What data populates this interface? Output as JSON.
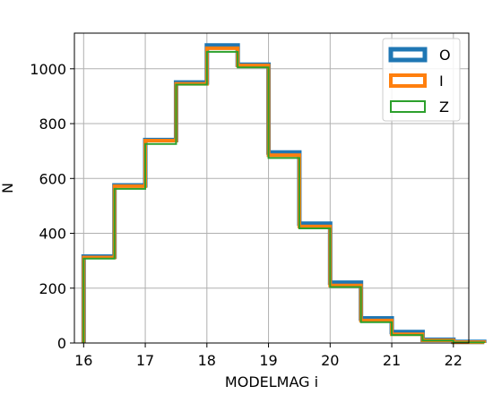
{
  "chart_data": {
    "type": "histogram-step",
    "title": "",
    "xlabel": "MODELMAG i",
    "ylabel": "N",
    "xlim": [
      15.85,
      22.25
    ],
    "ylim": [
      0,
      1130
    ],
    "grid": true,
    "xticks": [
      16,
      17,
      18,
      19,
      20,
      21,
      22
    ],
    "yticks": [
      0,
      200,
      400,
      600,
      800,
      1000
    ],
    "bin_edges": [
      16,
      16.5,
      17,
      17.5,
      18,
      18.5,
      19,
      19.5,
      20,
      20.5,
      21,
      21.5,
      22,
      22.5
    ],
    "legend_position": "top-right",
    "series": [
      {
        "name": "O",
        "color": "#1f77b4",
        "lw": 5,
        "values": [
          315,
          575,
          740,
          950,
          1085,
          1015,
          695,
          435,
          220,
          90,
          40,
          12,
          4
        ]
      },
      {
        "name": "I",
        "color": "#ff7f0e",
        "lw": 4,
        "values": [
          312,
          572,
          738,
          945,
          1075,
          1012,
          685,
          425,
          210,
          82,
          32,
          10,
          3
        ]
      },
      {
        "name": "Z",
        "color": "#2ca02c",
        "lw": 2,
        "values": [
          308,
          562,
          726,
          942,
          1062,
          1005,
          675,
          418,
          204,
          76,
          29,
          9,
          2
        ]
      }
    ]
  }
}
